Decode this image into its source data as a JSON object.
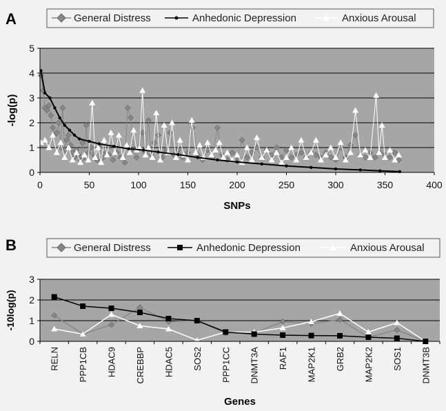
{
  "chart_data": [
    {
      "panel_label": "A",
      "type": "line",
      "xlabel": "SNPs",
      "ylabel": "-log(p)",
      "xlim": [
        0,
        400
      ],
      "ylim": [
        0,
        5
      ],
      "xticks": [
        "0",
        "50",
        "100",
        "150",
        "200",
        "250",
        "300",
        "350",
        "400"
      ],
      "yticks": [
        "0",
        "1",
        "2",
        "3",
        "4",
        "5"
      ],
      "grid": "horizontal",
      "legend_position": "top",
      "series": [
        {
          "name": "General Distress",
          "color": "#888888",
          "marker": "diamond",
          "points": [
            [
              1,
              3.9
            ],
            [
              3,
              3.3
            ],
            [
              5,
              2.6
            ],
            [
              7,
              2.5
            ],
            [
              9,
              2.7
            ],
            [
              11,
              2.3
            ],
            [
              13,
              1.8
            ],
            [
              15,
              1.5
            ],
            [
              17,
              1.6
            ],
            [
              19,
              2.0
            ],
            [
              21,
              1.0
            ],
            [
              23,
              2.6
            ],
            [
              25,
              0.9
            ],
            [
              27,
              1.3
            ],
            [
              29,
              1.5
            ],
            [
              31,
              1.1
            ],
            [
              33,
              0.8
            ],
            [
              35,
              0.6
            ],
            [
              37,
              0.9
            ],
            [
              39,
              0.7
            ],
            [
              41,
              0.5
            ],
            [
              43,
              1.2
            ],
            [
              45,
              0.6
            ],
            [
              47,
              1.9
            ],
            [
              49,
              0.8
            ],
            [
              52,
              1.0
            ],
            [
              55,
              0.7
            ],
            [
              58,
              0.5
            ],
            [
              61,
              1.0
            ],
            [
              64,
              0.6
            ],
            [
              67,
              0.8
            ],
            [
              70,
              0.7
            ],
            [
              74,
              0.5
            ],
            [
              78,
              0.8
            ],
            [
              82,
              0.6
            ],
            [
              86,
              0.4
            ],
            [
              89,
              2.6
            ],
            [
              92,
              2.2
            ],
            [
              95,
              0.9
            ],
            [
              98,
              0.6
            ],
            [
              101,
              1.0
            ],
            [
              104,
              1.6
            ],
            [
              107,
              0.8
            ],
            [
              110,
              2.1
            ],
            [
              113,
              0.7
            ],
            [
              116,
              1.2
            ],
            [
              120,
              1.5
            ],
            [
              124,
              0.6
            ],
            [
              128,
              0.9
            ],
            [
              132,
              1.6
            ],
            [
              136,
              0.7
            ],
            [
              140,
              0.9
            ],
            [
              145,
              0.6
            ],
            [
              150,
              0.8
            ],
            [
              155,
              1.8
            ],
            [
              160,
              0.7
            ],
            [
              165,
              0.5
            ],
            [
              170,
              0.9
            ],
            [
              175,
              0.6
            ],
            [
              180,
              1.8
            ],
            [
              185,
              0.7
            ],
            [
              190,
              0.5
            ],
            [
              195,
              0.8
            ],
            [
              200,
              0.6
            ],
            [
              205,
              1.3
            ],
            [
              210,
              0.6
            ],
            [
              215,
              0.8
            ],
            [
              220,
              1.0
            ],
            [
              225,
              0.6
            ],
            [
              230,
              0.9
            ],
            [
              235,
              0.7
            ],
            [
              240,
              1.0
            ],
            [
              245,
              0.6
            ],
            [
              250,
              0.9
            ],
            [
              255,
              0.6
            ],
            [
              260,
              0.7
            ],
            [
              265,
              0.8
            ],
            [
              270,
              0.6
            ],
            [
              275,
              0.8
            ],
            [
              280,
              0.7
            ],
            [
              285,
              0.6
            ],
            [
              290,
              0.8
            ],
            [
              295,
              0.6
            ],
            [
              300,
              0.5
            ],
            [
              305,
              1.0
            ],
            [
              310,
              0.6
            ],
            [
              315,
              1.1
            ],
            [
              320,
              1.5
            ],
            [
              325,
              0.7
            ],
            [
              330,
              0.6
            ],
            [
              335,
              0.8
            ],
            [
              340,
              0.6
            ],
            [
              345,
              0.8
            ],
            [
              350,
              0.7
            ],
            [
              355,
              0.6
            ],
            [
              360,
              0.8
            ],
            [
              364,
              0.5
            ]
          ]
        },
        {
          "name": "Anhedonic Depression",
          "color": "#000000",
          "marker": "dot",
          "points": [
            [
              1,
              4.1
            ],
            [
              5,
              3.2
            ],
            [
              10,
              3.0
            ],
            [
              15,
              2.6
            ],
            [
              20,
              2.2
            ],
            [
              25,
              1.9
            ],
            [
              30,
              1.7
            ],
            [
              35,
              1.5
            ],
            [
              40,
              1.35
            ],
            [
              50,
              1.25
            ],
            [
              60,
              1.15
            ],
            [
              75,
              1.05
            ],
            [
              90,
              0.95
            ],
            [
              105,
              0.9
            ],
            [
              120,
              0.82
            ],
            [
              140,
              0.72
            ],
            [
              160,
              0.6
            ],
            [
              180,
              0.5
            ],
            [
              200,
              0.42
            ],
            [
              225,
              0.34
            ],
            [
              250,
              0.26
            ],
            [
              275,
              0.2
            ],
            [
              300,
              0.14
            ],
            [
              325,
              0.1
            ],
            [
              345,
              0.06
            ],
            [
              365,
              0.03
            ]
          ]
        },
        {
          "name": "Anxious Arousal",
          "color": "#ffffff",
          "marker": "triangle",
          "points": [
            [
              1,
              1.2
            ],
            [
              5,
              1.3
            ],
            [
              9,
              1.0
            ],
            [
              13,
              1.5
            ],
            [
              17,
              0.8
            ],
            [
              21,
              1.2
            ],
            [
              25,
              0.6
            ],
            [
              29,
              1.0
            ],
            [
              33,
              0.5
            ],
            [
              37,
              0.8
            ],
            [
              41,
              0.4
            ],
            [
              45,
              0.7
            ],
            [
              49,
              0.5
            ],
            [
              53,
              2.8
            ],
            [
              56,
              0.6
            ],
            [
              59,
              1.0
            ],
            [
              62,
              0.4
            ],
            [
              65,
              1.3
            ],
            [
              68,
              0.7
            ],
            [
              72,
              1.6
            ],
            [
              76,
              0.8
            ],
            [
              80,
              1.5
            ],
            [
              84,
              0.6
            ],
            [
              88,
              1.1
            ],
            [
              91,
              0.8
            ],
            [
              95,
              1.7
            ],
            [
              98,
              0.9
            ],
            [
              101,
              1.0
            ],
            [
              104,
              3.3
            ],
            [
              107,
              0.7
            ],
            [
              110,
              1.0
            ],
            [
              114,
              0.6
            ],
            [
              118,
              2.4
            ],
            [
              122,
              0.5
            ],
            [
              126,
              1.9
            ],
            [
              130,
              0.8
            ],
            [
              134,
              2.0
            ],
            [
              138,
              0.6
            ],
            [
              142,
              1.3
            ],
            [
              146,
              0.7
            ],
            [
              150,
              0.5
            ],
            [
              154,
              2.1
            ],
            [
              158,
              0.8
            ],
            [
              162,
              1.1
            ],
            [
              166,
              0.6
            ],
            [
              170,
              1.2
            ],
            [
              174,
              0.7
            ],
            [
              178,
              0.9
            ],
            [
              182,
              1.2
            ],
            [
              186,
              0.6
            ],
            [
              190,
              0.8
            ],
            [
              195,
              0.5
            ],
            [
              200,
              0.7
            ],
            [
              205,
              0.4
            ],
            [
              210,
              1.0
            ],
            [
              215,
              0.5
            ],
            [
              220,
              1.4
            ],
            [
              225,
              0.6
            ],
            [
              230,
              0.9
            ],
            [
              235,
              0.5
            ],
            [
              240,
              0.8
            ],
            [
              245,
              0.4
            ],
            [
              250,
              0.6
            ],
            [
              255,
              1.0
            ],
            [
              260,
              0.5
            ],
            [
              265,
              1.3
            ],
            [
              270,
              0.6
            ],
            [
              275,
              0.8
            ],
            [
              280,
              1.3
            ],
            [
              285,
              0.5
            ],
            [
              290,
              0.7
            ],
            [
              295,
              1.0
            ],
            [
              300,
              0.6
            ],
            [
              305,
              1.2
            ],
            [
              310,
              0.5
            ],
            [
              315,
              0.8
            ],
            [
              320,
              2.5
            ],
            [
              325,
              0.7
            ],
            [
              330,
              0.9
            ],
            [
              335,
              0.6
            ],
            [
              341,
              3.1
            ],
            [
              344,
              0.8
            ],
            [
              347,
              1.9
            ],
            [
              350,
              0.6
            ],
            [
              355,
              0.9
            ],
            [
              360,
              0.5
            ],
            [
              364,
              0.7
            ]
          ]
        }
      ]
    },
    {
      "panel_label": "B",
      "type": "line",
      "xlabel": "Genes",
      "ylabel": "-10log(p)",
      "ylim": [
        0,
        3
      ],
      "yticks": [
        "0",
        "1",
        "2",
        "3"
      ],
      "grid": "horizontal",
      "legend_position": "top",
      "categories": [
        "RELN",
        "PPP1CB",
        "HDAC9",
        "CREBBP",
        "HDAC5",
        "SOS2",
        "PPP1CC",
        "DNMT3A",
        "RAF1",
        "MAP2K1",
        "GRB2",
        "MAP2K2",
        "SOS1",
        "DNMT3B"
      ],
      "series": [
        {
          "name": "General Distress",
          "color": "#888888",
          "marker": "diamond",
          "values": [
            1.25,
            0.35,
            0.8,
            1.65,
            0.95,
            1.0,
            0.4,
            0.4,
            0.95,
            0.85,
            1.05,
            0.2,
            0.55,
            0.0
          ]
        },
        {
          "name": "Anhedonic Depression",
          "color": "#000000",
          "marker": "square",
          "values": [
            2.15,
            1.7,
            1.6,
            1.4,
            1.1,
            1.0,
            0.45,
            0.35,
            0.3,
            0.28,
            0.27,
            0.2,
            0.15,
            0.0
          ]
        },
        {
          "name": "Anxious Arousal",
          "color": "#ffffff",
          "marker": "triangle",
          "values": [
            0.6,
            0.35,
            1.3,
            0.75,
            0.6,
            0.05,
            0.45,
            0.45,
            0.65,
            0.95,
            1.35,
            0.45,
            0.9,
            0.0
          ]
        }
      ]
    }
  ]
}
